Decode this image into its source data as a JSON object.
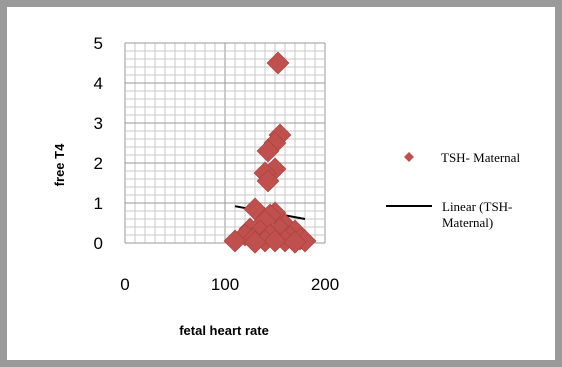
{
  "chart_data": {
    "type": "scatter",
    "title": "",
    "xlabel": "fetal heart rate",
    "ylabel": "free T4",
    "xlim": [
      0,
      200
    ],
    "ylim": [
      0,
      5
    ],
    "xticks": [
      "0",
      "100",
      "200"
    ],
    "yticks": [
      "0",
      "1",
      "2",
      "3",
      "4",
      "5"
    ],
    "grid": true,
    "legend_position": "right",
    "series": [
      {
        "name": "TSH- Maternal",
        "marker": "diamond",
        "color": "#c0504d",
        "points": [
          [
            153,
            4.5
          ],
          [
            155,
            2.7
          ],
          [
            150,
            2.5
          ],
          [
            143,
            2.3
          ],
          [
            150,
            1.85
          ],
          [
            140,
            1.75
          ],
          [
            143,
            1.55
          ],
          [
            130,
            0.85
          ],
          [
            150,
            0.75
          ],
          [
            145,
            0.7
          ],
          [
            140,
            0.55
          ],
          [
            160,
            0.45
          ],
          [
            155,
            0.35
          ],
          [
            125,
            0.35
          ],
          [
            135,
            0.3
          ],
          [
            170,
            0.3
          ],
          [
            120,
            0.2
          ],
          [
            145,
            0.2
          ],
          [
            165,
            0.15
          ],
          [
            128,
            0.1
          ],
          [
            175,
            0.1
          ],
          [
            160,
            0.05
          ],
          [
            110,
            0.05
          ],
          [
            140,
            0.05
          ],
          [
            180,
            0.05
          ],
          [
            150,
            0.05
          ],
          [
            170,
            0.02
          ],
          [
            130,
            0.02
          ]
        ]
      }
    ],
    "trendline": {
      "name": "Linear (TSH- Maternal)",
      "type": "linear",
      "color": "#000000",
      "x": [
        110,
        180
      ],
      "y": [
        0.92,
        0.6
      ]
    }
  }
}
